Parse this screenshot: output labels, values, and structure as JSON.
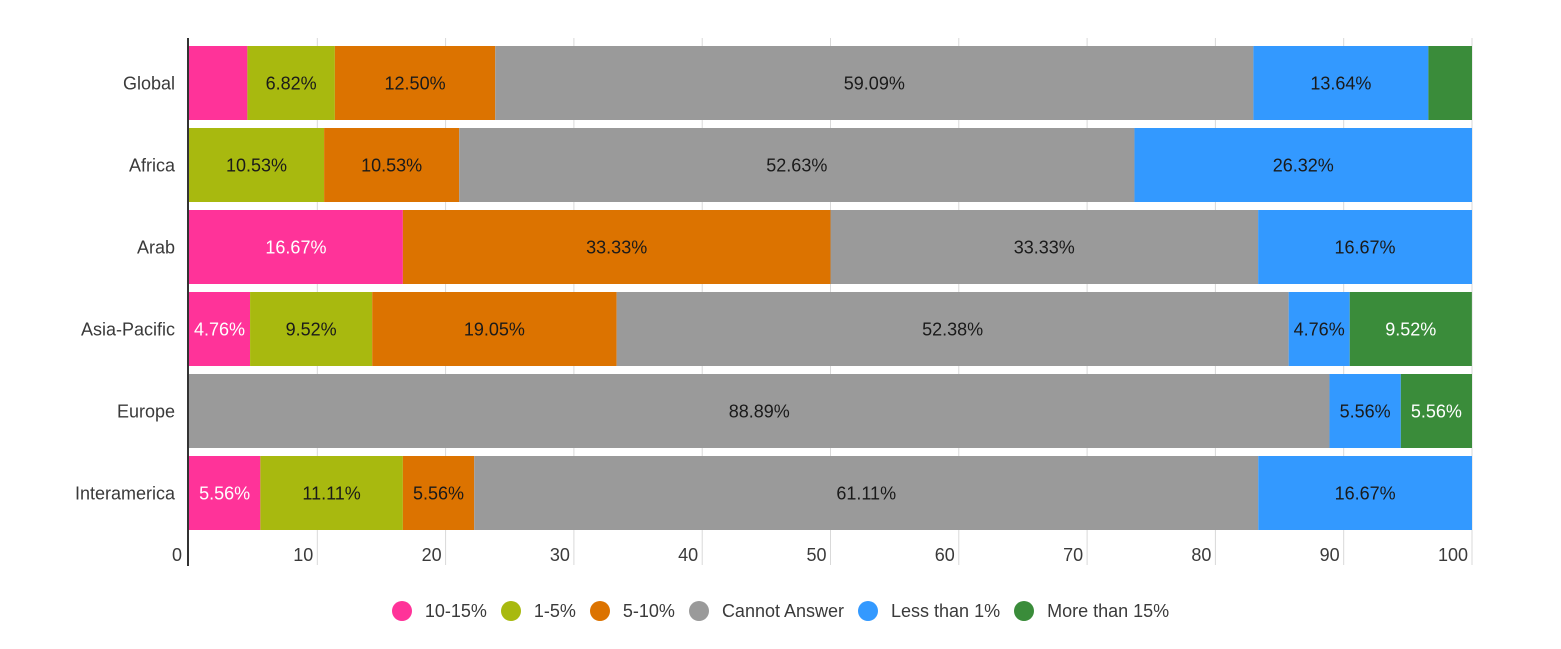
{
  "chart_data": {
    "type": "bar",
    "orientation": "horizontal",
    "stacked": true,
    "categories": [
      "Global",
      "Africa",
      "Arab",
      "Asia-Pacific",
      "Europe",
      "Interamerica"
    ],
    "series": [
      {
        "name": "10-15%",
        "color": "#ff3399",
        "label_color": "#ffffff",
        "values": [
          4.55,
          0,
          16.67,
          4.76,
          0,
          5.56
        ],
        "labels": [
          "",
          "",
          "16.67%",
          "4.76%",
          "",
          "5.56%"
        ]
      },
      {
        "name": "1-5%",
        "color": "#a8b90f",
        "label_color": "#1a1a1a",
        "values": [
          6.82,
          10.53,
          0,
          9.52,
          0,
          11.11
        ],
        "labels": [
          "6.82%",
          "10.53%",
          "",
          "9.52%",
          "",
          "11.11%"
        ]
      },
      {
        "name": "5-10%",
        "color": "#dc7300",
        "label_color": "#1a1a1a",
        "values": [
          12.5,
          10.53,
          33.33,
          19.05,
          0,
          5.56
        ],
        "labels": [
          "12.50%",
          "10.53%",
          "33.33%",
          "19.05%",
          "",
          "5.56%"
        ]
      },
      {
        "name": "Cannot Answer",
        "color": "#9a9a9a",
        "label_color": "#1a1a1a",
        "values": [
          59.09,
          52.63,
          33.33,
          52.38,
          88.89,
          61.11
        ],
        "labels": [
          "59.09%",
          "52.63%",
          "33.33%",
          "52.38%",
          "88.89%",
          "61.11%"
        ]
      },
      {
        "name": "Less than 1%",
        "color": "#3399ff",
        "label_color": "#1a1a1a",
        "values": [
          13.64,
          26.32,
          16.67,
          4.76,
          5.56,
          16.67
        ],
        "labels": [
          "13.64%",
          "26.32%",
          "16.67%",
          "4.76%",
          "5.56%",
          "16.67%"
        ]
      },
      {
        "name": "More than 15%",
        "color": "#3a8c3a",
        "label_color": "#ffffff",
        "values": [
          3.4,
          0,
          0,
          9.52,
          5.56,
          0
        ],
        "labels": [
          "",
          "",
          "",
          "9.52%",
          "5.56%",
          ""
        ]
      }
    ],
    "xlim": [
      0,
      100
    ],
    "x_ticks": [
      "0",
      "10",
      "20",
      "30",
      "40",
      "50",
      "60",
      "70",
      "80",
      "90",
      "100"
    ],
    "grid": true,
    "legend_position": "bottom"
  }
}
